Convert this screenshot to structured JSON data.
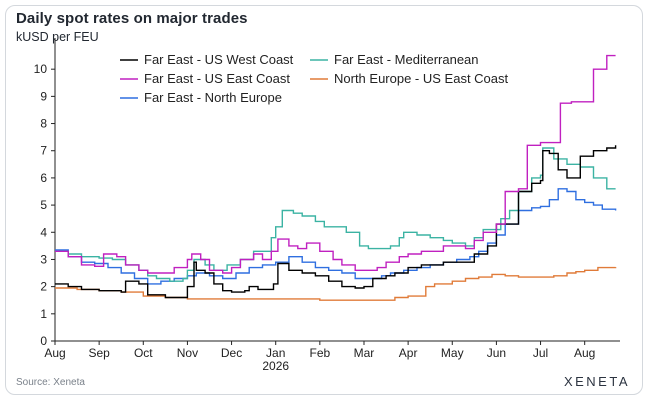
{
  "header": {
    "title": "Daily spot rates on major trades",
    "subtitle": "kUSD per FEU"
  },
  "footer": {
    "source": "Source: Xeneta",
    "brand": "XENETA"
  },
  "chart_data": {
    "type": "line",
    "title": "Daily spot rates on major trades",
    "ylabel": "kUSD per FEU",
    "xlabel": "",
    "ylim": [
      0,
      11
    ],
    "yticks": [
      0,
      1,
      2,
      3,
      4,
      5,
      6,
      7,
      8,
      9,
      10
    ],
    "x_months": [
      "Aug",
      "Sep",
      "Oct",
      "Nov",
      "Dec",
      "Jan",
      "Feb",
      "Mar",
      "Apr",
      "May",
      "Jun",
      "Jul",
      "Aug"
    ],
    "x_year_label": "2026",
    "x_range_months": [
      0,
      12.8
    ],
    "grid": false,
    "legend": {
      "placement": "top",
      "entries": [
        {
          "name": "Far East - US West Coast",
          "color": "#000000"
        },
        {
          "name": "Far East - Mediterranean",
          "color": "#3bb3a3"
        },
        {
          "name": "Far East - US East Coast",
          "color": "#c020c0"
        },
        {
          "name": "North Europe - US East Coast",
          "color": "#e07b39"
        },
        {
          "name": "Far East  - North Europe",
          "color": "#2f6fe0"
        }
      ]
    },
    "series": [
      {
        "name": "Far East - US West Coast",
        "color": "#000000",
        "points": [
          [
            0,
            2.1
          ],
          [
            0.3,
            2.0
          ],
          [
            0.6,
            1.9
          ],
          [
            1.0,
            1.85
          ],
          [
            1.5,
            1.8
          ],
          [
            1.6,
            2.2
          ],
          [
            1.9,
            2.1
          ],
          [
            2.1,
            1.7
          ],
          [
            2.3,
            1.7
          ],
          [
            2.5,
            1.6
          ],
          [
            2.7,
            1.6
          ],
          [
            3.0,
            2.0
          ],
          [
            3.15,
            2.9
          ],
          [
            3.2,
            2.6
          ],
          [
            3.4,
            2.5
          ],
          [
            3.6,
            2.1
          ],
          [
            3.8,
            1.85
          ],
          [
            4.0,
            1.8
          ],
          [
            4.3,
            1.85
          ],
          [
            4.4,
            2.0
          ],
          [
            4.6,
            1.9
          ],
          [
            4.8,
            1.9
          ],
          [
            4.95,
            2.1
          ],
          [
            5.05,
            2.85
          ],
          [
            5.3,
            2.6
          ],
          [
            5.6,
            2.5
          ],
          [
            5.9,
            2.4
          ],
          [
            6.2,
            2.2
          ],
          [
            6.5,
            2.0
          ],
          [
            6.8,
            1.95
          ],
          [
            7.0,
            2.0
          ],
          [
            7.2,
            2.3
          ],
          [
            7.5,
            2.4
          ],
          [
            7.7,
            2.5
          ],
          [
            8.0,
            2.7
          ],
          [
            8.3,
            2.8
          ],
          [
            8.6,
            2.8
          ],
          [
            8.8,
            2.9
          ],
          [
            9.0,
            2.9
          ],
          [
            9.3,
            2.9
          ],
          [
            9.5,
            3.2
          ],
          [
            9.8,
            3.5
          ],
          [
            10.0,
            4.3
          ],
          [
            10.3,
            4.3
          ],
          [
            10.5,
            5.5
          ],
          [
            10.8,
            5.8
          ],
          [
            11.0,
            5.9
          ],
          [
            11.05,
            7.0
          ],
          [
            11.2,
            6.9
          ],
          [
            11.4,
            6.3
          ],
          [
            11.6,
            6.0
          ],
          [
            11.8,
            6.0
          ],
          [
            11.9,
            6.8
          ],
          [
            12.2,
            7.0
          ],
          [
            12.5,
            7.1
          ],
          [
            12.7,
            7.2
          ]
        ]
      },
      {
        "name": "Far East - Mediterranean",
        "color": "#3bb3a3",
        "points": [
          [
            0,
            3.3
          ],
          [
            0.3,
            3.2
          ],
          [
            0.6,
            3.1
          ],
          [
            1.0,
            3.05
          ],
          [
            1.3,
            3.0
          ],
          [
            1.6,
            2.8
          ],
          [
            1.9,
            2.6
          ],
          [
            2.1,
            2.4
          ],
          [
            2.3,
            2.3
          ],
          [
            2.6,
            2.2
          ],
          [
            2.9,
            2.3
          ],
          [
            3.0,
            2.6
          ],
          [
            3.15,
            3.0
          ],
          [
            3.4,
            2.8
          ],
          [
            3.6,
            2.6
          ],
          [
            3.9,
            2.8
          ],
          [
            4.2,
            3.0
          ],
          [
            4.5,
            3.3
          ],
          [
            4.7,
            3.3
          ],
          [
            4.9,
            3.8
          ],
          [
            5.0,
            4.2
          ],
          [
            5.15,
            4.8
          ],
          [
            5.4,
            4.7
          ],
          [
            5.6,
            4.6
          ],
          [
            5.9,
            4.4
          ],
          [
            6.1,
            4.2
          ],
          [
            6.3,
            4.2
          ],
          [
            6.6,
            4.0
          ],
          [
            6.9,
            3.5
          ],
          [
            7.1,
            3.4
          ],
          [
            7.4,
            3.4
          ],
          [
            7.6,
            3.5
          ],
          [
            7.8,
            3.8
          ],
          [
            7.9,
            4.0
          ],
          [
            8.2,
            3.9
          ],
          [
            8.5,
            3.8
          ],
          [
            8.8,
            3.7
          ],
          [
            9.0,
            3.6
          ],
          [
            9.3,
            3.5
          ],
          [
            9.5,
            3.8
          ],
          [
            9.7,
            4.1
          ],
          [
            9.9,
            4.1
          ],
          [
            10.1,
            4.5
          ],
          [
            10.3,
            4.8
          ],
          [
            10.5,
            5.5
          ],
          [
            10.8,
            6.0
          ],
          [
            11.0,
            6.1
          ],
          [
            11.05,
            7.1
          ],
          [
            11.3,
            6.7
          ],
          [
            11.6,
            6.5
          ],
          [
            11.9,
            6.4
          ],
          [
            12.2,
            6.0
          ],
          [
            12.5,
            5.6
          ],
          [
            12.7,
            5.6
          ]
        ]
      },
      {
        "name": "Far East - US East Coast",
        "color": "#c020c0",
        "points": [
          [
            0,
            3.3
          ],
          [
            0.3,
            3.1
          ],
          [
            0.6,
            2.8
          ],
          [
            0.9,
            2.75
          ],
          [
            1.1,
            3.2
          ],
          [
            1.4,
            3.1
          ],
          [
            1.6,
            2.8
          ],
          [
            1.9,
            2.6
          ],
          [
            2.1,
            2.5
          ],
          [
            2.4,
            2.5
          ],
          [
            2.7,
            2.7
          ],
          [
            3.0,
            3.0
          ],
          [
            3.1,
            3.2
          ],
          [
            3.3,
            3.0
          ],
          [
            3.5,
            2.6
          ],
          [
            3.8,
            2.5
          ],
          [
            4.0,
            2.7
          ],
          [
            4.2,
            3.0
          ],
          [
            4.5,
            3.2
          ],
          [
            4.7,
            3.0
          ],
          [
            4.9,
            3.3
          ],
          [
            5.05,
            3.75
          ],
          [
            5.3,
            3.5
          ],
          [
            5.5,
            3.4
          ],
          [
            5.7,
            3.6
          ],
          [
            6.0,
            3.3
          ],
          [
            6.3,
            3.0
          ],
          [
            6.5,
            2.8
          ],
          [
            6.8,
            2.6
          ],
          [
            7.0,
            2.6
          ],
          [
            7.3,
            2.7
          ],
          [
            7.5,
            2.9
          ],
          [
            7.8,
            3.1
          ],
          [
            8.0,
            3.2
          ],
          [
            8.3,
            3.3
          ],
          [
            8.6,
            3.3
          ],
          [
            8.8,
            3.5
          ],
          [
            9.0,
            3.5
          ],
          [
            9.3,
            3.4
          ],
          [
            9.5,
            3.7
          ],
          [
            9.7,
            4.0
          ],
          [
            10.0,
            4.3
          ],
          [
            10.2,
            5.5
          ],
          [
            10.5,
            5.6
          ],
          [
            10.7,
            7.2
          ],
          [
            11.0,
            7.3
          ],
          [
            11.3,
            7.3
          ],
          [
            11.45,
            8.75
          ],
          [
            11.7,
            8.8
          ],
          [
            11.9,
            8.8
          ],
          [
            12.1,
            8.8
          ],
          [
            12.2,
            10.0
          ],
          [
            12.5,
            10.5
          ],
          [
            12.7,
            10.5
          ]
        ]
      },
      {
        "name": "North Europe - US East Coast",
        "color": "#e07b39",
        "points": [
          [
            0,
            1.95
          ],
          [
            0.5,
            1.9
          ],
          [
            1.0,
            1.85
          ],
          [
            1.5,
            1.8
          ],
          [
            2.0,
            1.65
          ],
          [
            2.5,
            1.6
          ],
          [
            3.0,
            1.55
          ],
          [
            4.0,
            1.55
          ],
          [
            5.0,
            1.55
          ],
          [
            6.0,
            1.5
          ],
          [
            7.0,
            1.5
          ],
          [
            7.5,
            1.5
          ],
          [
            7.7,
            1.6
          ],
          [
            8.0,
            1.65
          ],
          [
            8.2,
            1.65
          ],
          [
            8.4,
            2.0
          ],
          [
            8.6,
            2.1
          ],
          [
            9.0,
            2.2
          ],
          [
            9.3,
            2.3
          ],
          [
            9.6,
            2.35
          ],
          [
            9.9,
            2.45
          ],
          [
            10.2,
            2.4
          ],
          [
            10.5,
            2.35
          ],
          [
            11.0,
            2.35
          ],
          [
            11.3,
            2.4
          ],
          [
            11.6,
            2.5
          ],
          [
            11.8,
            2.55
          ],
          [
            12.0,
            2.6
          ],
          [
            12.3,
            2.7
          ],
          [
            12.7,
            2.72
          ]
        ]
      },
      {
        "name": "Far East  - North Europe",
        "color": "#2f6fe0",
        "points": [
          [
            0,
            3.35
          ],
          [
            0.3,
            3.1
          ],
          [
            0.6,
            2.9
          ],
          [
            0.9,
            2.85
          ],
          [
            1.2,
            2.7
          ],
          [
            1.5,
            2.5
          ],
          [
            1.8,
            2.3
          ],
          [
            2.1,
            2.1
          ],
          [
            2.4,
            2.2
          ],
          [
            2.7,
            2.3
          ],
          [
            3.0,
            2.4
          ],
          [
            3.2,
            2.5
          ],
          [
            3.5,
            2.4
          ],
          [
            3.8,
            2.3
          ],
          [
            4.1,
            2.5
          ],
          [
            4.4,
            2.7
          ],
          [
            4.7,
            2.8
          ],
          [
            5.0,
            2.9
          ],
          [
            5.3,
            3.1
          ],
          [
            5.6,
            2.9
          ],
          [
            5.9,
            2.7
          ],
          [
            6.2,
            2.6
          ],
          [
            6.5,
            2.5
          ],
          [
            6.8,
            2.3
          ],
          [
            7.1,
            2.3
          ],
          [
            7.4,
            2.4
          ],
          [
            7.6,
            2.5
          ],
          [
            7.9,
            2.6
          ],
          [
            8.2,
            2.7
          ],
          [
            8.5,
            2.8
          ],
          [
            8.8,
            2.9
          ],
          [
            9.1,
            3.0
          ],
          [
            9.4,
            3.1
          ],
          [
            9.6,
            3.3
          ],
          [
            9.8,
            3.6
          ],
          [
            10.0,
            3.9
          ],
          [
            10.2,
            4.3
          ],
          [
            10.5,
            4.8
          ],
          [
            10.8,
            4.9
          ],
          [
            11.0,
            4.95
          ],
          [
            11.2,
            5.2
          ],
          [
            11.4,
            5.6
          ],
          [
            11.6,
            5.5
          ],
          [
            11.8,
            5.2
          ],
          [
            12.0,
            5.1
          ],
          [
            12.2,
            5.0
          ],
          [
            12.4,
            4.85
          ],
          [
            12.7,
            4.8
          ]
        ]
      }
    ]
  }
}
